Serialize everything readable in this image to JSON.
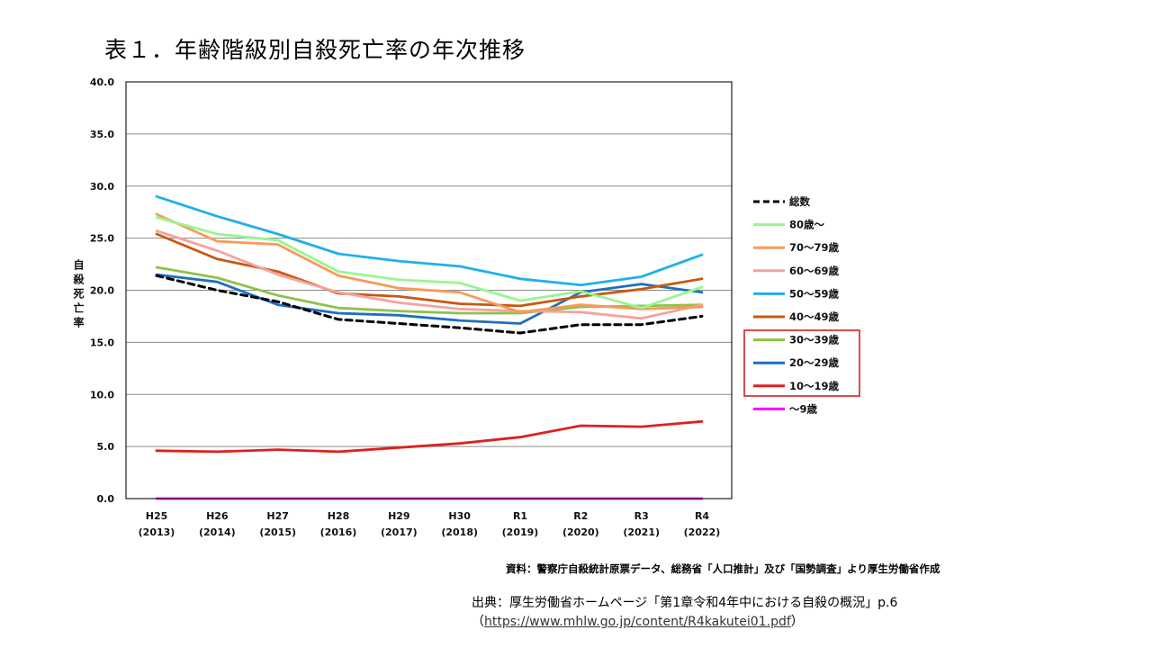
{
  "page_title": "表１．年齢階級別自殺死亡率の年次推移",
  "chart_data": {
    "type": "line",
    "title": "年齢階級別自殺死亡率の年次推移",
    "xlabel": "",
    "ylabel": "自殺死亡率",
    "ylim": [
      0,
      40
    ],
    "y_ticks": [
      "0.0",
      "5.0",
      "10.0",
      "15.0",
      "20.0",
      "25.0",
      "30.0",
      "35.0",
      "40.0"
    ],
    "categories": [
      {
        "era": "H25",
        "year": "(2013)"
      },
      {
        "era": "H26",
        "year": "(2014)"
      },
      {
        "era": "H27",
        "year": "(2015)"
      },
      {
        "era": "H28",
        "year": "(2016)"
      },
      {
        "era": "H29",
        "year": "(2017)"
      },
      {
        "era": "H30",
        "year": "(2018)"
      },
      {
        "era": "R1",
        "year": "(2019)"
      },
      {
        "era": "R2",
        "year": "(2020)"
      },
      {
        "era": "R3",
        "year": "(2021)"
      },
      {
        "era": "R4",
        "year": "(2022)"
      }
    ],
    "grid": true,
    "legend_position": "right",
    "series": [
      {
        "name": "総数",
        "color": "#000000",
        "dashed": true,
        "highlighted": false,
        "values": [
          21.4,
          20.0,
          18.9,
          17.2,
          16.8,
          16.4,
          15.9,
          16.7,
          16.7,
          17.5
        ]
      },
      {
        "name": "80歳～",
        "color": "#99f590",
        "dashed": false,
        "highlighted": false,
        "values": [
          27.0,
          25.4,
          24.8,
          21.8,
          21.0,
          20.7,
          19.0,
          19.9,
          18.3,
          20.3
        ]
      },
      {
        "name": "70～79歳",
        "color": "#f79a5a",
        "dashed": false,
        "highlighted": false,
        "values": [
          27.3,
          24.7,
          24.4,
          21.4,
          20.2,
          19.8,
          17.9,
          18.6,
          18.2,
          18.4
        ]
      },
      {
        "name": "60～69歳",
        "color": "#f4a3a0",
        "dashed": false,
        "highlighted": false,
        "values": [
          25.7,
          23.8,
          21.5,
          19.8,
          18.8,
          18.2,
          18.0,
          17.9,
          17.3,
          18.6
        ]
      },
      {
        "name": "50～59歳",
        "color": "#1fb0ea",
        "dashed": false,
        "highlighted": false,
        "values": [
          29.0,
          27.1,
          25.4,
          23.5,
          22.8,
          22.3,
          21.1,
          20.5,
          21.3,
          23.4
        ]
      },
      {
        "name": "40～49歳",
        "color": "#c55a11",
        "dashed": false,
        "highlighted": false,
        "values": [
          25.4,
          23.0,
          21.8,
          19.7,
          19.4,
          18.7,
          18.5,
          19.4,
          20.1,
          21.1
        ]
      },
      {
        "name": "30～39歳",
        "color": "#8bc34a",
        "dashed": false,
        "highlighted": true,
        "values": [
          22.2,
          21.2,
          19.5,
          18.3,
          18.0,
          17.8,
          17.8,
          18.4,
          18.5,
          18.6
        ]
      },
      {
        "name": "20～29歳",
        "color": "#1f6fbf",
        "dashed": false,
        "highlighted": true,
        "values": [
          21.5,
          20.8,
          18.6,
          17.8,
          17.6,
          17.1,
          16.8,
          19.8,
          20.6,
          19.8
        ]
      },
      {
        "name": "10～19歳",
        "color": "#e01f1f",
        "dashed": false,
        "highlighted": true,
        "values": [
          4.6,
          4.5,
          4.7,
          4.5,
          4.9,
          5.3,
          5.9,
          7.0,
          6.9,
          7.4
        ]
      },
      {
        "name": "～9歳",
        "color": "#ff00ff",
        "dashed": false,
        "highlighted": false,
        "values": [
          0.0,
          0.0,
          0.0,
          0.0,
          0.0,
          0.0,
          0.0,
          0.0,
          0.0,
          0.0
        ]
      }
    ]
  },
  "source_note": "資料：警察庁自殺統計原票データ、総務省「人口推計」及び「国勢調査」より厚生労働省作成",
  "citation": {
    "prefix": "出典：厚生労働省ホームページ「第1章令和4年中における自殺の概況」p.6",
    "open_paren": "（",
    "url": "https://www.mhlw.go.jp/content/R4kakutei01.pdf",
    "close_paren": "）"
  }
}
